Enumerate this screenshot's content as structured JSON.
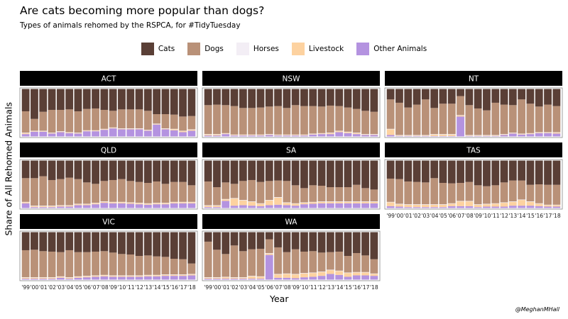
{
  "title": "Are cats becoming more popular than dogs?",
  "subtitle": "Types of animals rehomed by the RSPCA, for #TidyTuesday",
  "caption": "@MeghanMHall",
  "chart_data": {
    "type": "bar",
    "stacked": true,
    "xlabel": "Year",
    "ylabel": "Share of All Rehomed Animals",
    "legend_position": "top",
    "categories": [
      "'99",
      "'00",
      "'01",
      "'02",
      "'03",
      "'04",
      "'05",
      "'06",
      "'07",
      "'08",
      "'09",
      "'10",
      "'11",
      "'12",
      "'13",
      "'14",
      "'15",
      "'16",
      "'17",
      "'18"
    ],
    "series": [
      {
        "name": "Cats",
        "color": "#5a3f36"
      },
      {
        "name": "Dogs",
        "color": "#b99178"
      },
      {
        "name": "Horses",
        "color": "#f3eef5"
      },
      {
        "name": "Livestock",
        "color": "#fdd2a0"
      },
      {
        "name": "Other Animals",
        "color": "#b493e0"
      }
    ],
    "panels": [
      {
        "name": "ACT",
        "other": [
          0.05,
          0.1,
          0.1,
          0.06,
          0.09,
          0.07,
          0.06,
          0.11,
          0.11,
          0.14,
          0.17,
          0.15,
          0.15,
          0.15,
          0.12,
          0.25,
          0.15,
          0.13,
          0.09,
          0.12
        ],
        "livestock": [
          0.02,
          0.01,
          0.01,
          0.01,
          0.01,
          0.01,
          0.01,
          0.01,
          0.01,
          0.01,
          0.01,
          0.01,
          0.01,
          0.01,
          0.01,
          0.01,
          0.01,
          0.02,
          0.02,
          0.02
        ],
        "horses": [
          0.01,
          0.01,
          0.01,
          0.01,
          0.01,
          0.01,
          0.01,
          0.01,
          0.01,
          0.01,
          0.01,
          0.01,
          0.01,
          0.01,
          0.01,
          0.01,
          0.01,
          0.01,
          0.01,
          0.01
        ],
        "dogs": [
          0.45,
          0.25,
          0.4,
          0.48,
          0.45,
          0.48,
          0.45,
          0.45,
          0.46,
          0.4,
          0.35,
          0.4,
          0.4,
          0.4,
          0.4,
          0.2,
          0.3,
          0.3,
          0.3,
          0.28
        ]
      },
      {
        "name": "NSW",
        "other": [
          0.02,
          0.02,
          0.05,
          0.02,
          0.02,
          0.02,
          0.02,
          0.03,
          0.02,
          0.02,
          0.02,
          0.02,
          0.04,
          0.05,
          0.05,
          0.09,
          0.07,
          0.05,
          0.03,
          0.03
        ],
        "livestock": [
          0.02,
          0.02,
          0.01,
          0.01,
          0.01,
          0.01,
          0.01,
          0.01,
          0.01,
          0.01,
          0.01,
          0.01,
          0.01,
          0.01,
          0.02,
          0.02,
          0.02,
          0.02,
          0.01,
          0.01
        ],
        "horses": [
          0.01,
          0.01,
          0.01,
          0.01,
          0.01,
          0.01,
          0.01,
          0.01,
          0.01,
          0.01,
          0.01,
          0.01,
          0.01,
          0.01,
          0.01,
          0.01,
          0.01,
          0.01,
          0.01,
          0.01
        ],
        "dogs": [
          0.61,
          0.62,
          0.59,
          0.6,
          0.56,
          0.56,
          0.57,
          0.58,
          0.6,
          0.56,
          0.62,
          0.6,
          0.58,
          0.56,
          0.57,
          0.52,
          0.51,
          0.5,
          0.49,
          0.47
        ]
      },
      {
        "name": "NT",
        "other": [
          0.03,
          0.01,
          0.01,
          0.01,
          0.01,
          0.01,
          0.01,
          0.01,
          0.42,
          0.01,
          0.01,
          0.01,
          0.01,
          0.03,
          0.06,
          0.04,
          0.05,
          0.07,
          0.07,
          0.06
        ],
        "livestock": [
          0.12,
          0.01,
          0.01,
          0.01,
          0.01,
          0.03,
          0.03,
          0.03,
          0.02,
          0.01,
          0.01,
          0.01,
          0.01,
          0.01,
          0.01,
          0.01,
          0.01,
          0.01,
          0.01,
          0.02
        ],
        "horses": [
          0.01,
          0.01,
          0.01,
          0.01,
          0.01,
          0.01,
          0.01,
          0.01,
          0.01,
          0.01,
          0.01,
          0.01,
          0.01,
          0.01,
          0.01,
          0.01,
          0.01,
          0.01,
          0.01,
          0.01
        ],
        "dogs": [
          0.62,
          0.68,
          0.58,
          0.64,
          0.75,
          0.55,
          0.64,
          0.64,
          0.4,
          0.63,
          0.56,
          0.52,
          0.68,
          0.62,
          0.58,
          0.72,
          0.62,
          0.54,
          0.58,
          0.55
        ]
      },
      {
        "name": "QLD",
        "other": [
          0.1,
          0.02,
          0.02,
          0.02,
          0.03,
          0.03,
          0.06,
          0.06,
          0.08,
          0.11,
          0.1,
          0.1,
          0.09,
          0.08,
          0.07,
          0.08,
          0.08,
          0.1,
          0.1,
          0.1
        ],
        "livestock": [
          0.02,
          0.02,
          0.02,
          0.02,
          0.02,
          0.02,
          0.02,
          0.02,
          0.02,
          0.02,
          0.02,
          0.02,
          0.02,
          0.02,
          0.02,
          0.02,
          0.02,
          0.02,
          0.02,
          0.02
        ],
        "horses": [
          0.01,
          0.01,
          0.01,
          0.01,
          0.01,
          0.01,
          0.01,
          0.01,
          0.01,
          0.01,
          0.01,
          0.01,
          0.01,
          0.01,
          0.01,
          0.01,
          0.01,
          0.01,
          0.01,
          0.01
        ],
        "dogs": [
          0.5,
          0.58,
          0.62,
          0.54,
          0.55,
          0.58,
          0.52,
          0.45,
          0.4,
          0.43,
          0.46,
          0.48,
          0.45,
          0.44,
          0.43,
          0.45,
          0.4,
          0.42,
          0.42,
          0.35
        ]
      },
      {
        "name": "SA",
        "other": [
          0.02,
          0.02,
          0.15,
          0.05,
          0.06,
          0.05,
          0.04,
          0.06,
          0.07,
          0.06,
          0.05,
          0.08,
          0.09,
          0.1,
          0.1,
          0.1,
          0.1,
          0.1,
          0.1,
          0.1
        ],
        "livestock": [
          0.03,
          0.03,
          0.03,
          0.15,
          0.1,
          0.08,
          0.05,
          0.1,
          0.15,
          0.05,
          0.04,
          0.03,
          0.03,
          0.03,
          0.03,
          0.03,
          0.03,
          0.03,
          0.03,
          0.03
        ],
        "horses": [
          0.01,
          0.01,
          0.01,
          0.01,
          0.01,
          0.01,
          0.01,
          0.01,
          0.01,
          0.01,
          0.01,
          0.01,
          0.01,
          0.01,
          0.01,
          0.01,
          0.01,
          0.01,
          0.01,
          0.01
        ],
        "dogs": [
          0.5,
          0.38,
          0.35,
          0.3,
          0.4,
          0.45,
          0.45,
          0.4,
          0.35,
          0.45,
          0.38,
          0.3,
          0.35,
          0.33,
          0.3,
          0.3,
          0.3,
          0.35,
          0.28,
          0.25
        ]
      },
      {
        "name": "TAS",
        "other": [
          0.04,
          0.03,
          0.02,
          0.02,
          0.02,
          0.02,
          0.02,
          0.04,
          0.04,
          0.04,
          0.02,
          0.03,
          0.03,
          0.03,
          0.05,
          0.05,
          0.05,
          0.04,
          0.03,
          0.03
        ],
        "livestock": [
          0.08,
          0.05,
          0.05,
          0.05,
          0.05,
          0.05,
          0.05,
          0.05,
          0.1,
          0.1,
          0.05,
          0.05,
          0.06,
          0.08,
          0.08,
          0.12,
          0.08,
          0.05,
          0.03,
          0.03
        ],
        "horses": [
          0.01,
          0.01,
          0.01,
          0.01,
          0.01,
          0.01,
          0.01,
          0.01,
          0.01,
          0.01,
          0.01,
          0.01,
          0.01,
          0.01,
          0.01,
          0.01,
          0.01,
          0.01,
          0.01,
          0.01
        ],
        "dogs": [
          0.49,
          0.52,
          0.48,
          0.47,
          0.46,
          0.55,
          0.45,
          0.42,
          0.38,
          0.4,
          0.4,
          0.37,
          0.38,
          0.42,
          0.44,
          0.4,
          0.35,
          0.4,
          0.42,
          0.42
        ]
      },
      {
        "name": "VIC",
        "other": [
          0.02,
          0.02,
          0.02,
          0.02,
          0.04,
          0.02,
          0.04,
          0.05,
          0.06,
          0.07,
          0.06,
          0.06,
          0.06,
          0.06,
          0.07,
          0.07,
          0.08,
          0.08,
          0.08,
          0.09
        ],
        "livestock": [
          0.02,
          0.02,
          0.02,
          0.02,
          0.02,
          0.02,
          0.02,
          0.02,
          0.02,
          0.02,
          0.02,
          0.02,
          0.02,
          0.02,
          0.02,
          0.02,
          0.02,
          0.02,
          0.02,
          0.02
        ],
        "horses": [
          0.01,
          0.01,
          0.01,
          0.01,
          0.01,
          0.01,
          0.01,
          0.01,
          0.01,
          0.01,
          0.01,
          0.01,
          0.01,
          0.01,
          0.01,
          0.01,
          0.01,
          0.01,
          0.01,
          0.01
        ],
        "dogs": [
          0.57,
          0.58,
          0.55,
          0.54,
          0.51,
          0.57,
          0.51,
          0.5,
          0.5,
          0.5,
          0.48,
          0.45,
          0.44,
          0.41,
          0.41,
          0.39,
          0.37,
          0.33,
          0.32,
          0.22
        ]
      },
      {
        "name": "WA",
        "other": [
          0.02,
          0.02,
          0.02,
          0.02,
          0.02,
          0.02,
          0.02,
          0.52,
          0.04,
          0.04,
          0.03,
          0.05,
          0.06,
          0.08,
          0.12,
          0.1,
          0.06,
          0.09,
          0.09,
          0.08
        ],
        "livestock": [
          0.02,
          0.02,
          0.03,
          0.02,
          0.02,
          0.05,
          0.04,
          0.03,
          0.07,
          0.08,
          0.08,
          0.08,
          0.08,
          0.08,
          0.08,
          0.08,
          0.08,
          0.06,
          0.06,
          0.04
        ],
        "horses": [
          0.01,
          0.01,
          0.01,
          0.01,
          0.01,
          0.01,
          0.01,
          0.01,
          0.01,
          0.01,
          0.01,
          0.01,
          0.01,
          0.01,
          0.01,
          0.01,
          0.01,
          0.01,
          0.01,
          0.01
        ],
        "dogs": [
          0.75,
          0.58,
          0.48,
          0.67,
          0.55,
          0.56,
          0.58,
          0.29,
          0.56,
          0.45,
          0.52,
          0.45,
          0.45,
          0.4,
          0.37,
          0.4,
          0.35,
          0.4,
          0.35,
          0.3
        ]
      }
    ]
  }
}
